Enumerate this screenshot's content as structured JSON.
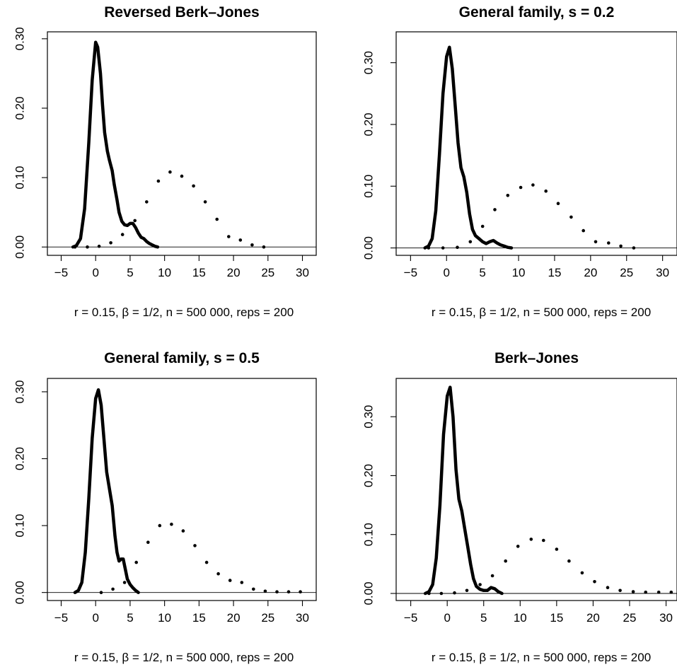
{
  "chart_data": [
    {
      "type": "line",
      "title": "Reversed Berk–Jones",
      "xlabel": "r = 0.15, β = 1/2, n = 500 000, reps = 200",
      "ylabel": "",
      "xlim": [
        -7,
        32
      ],
      "ylim": [
        -0.012,
        0.31
      ],
      "xticks": [
        -5,
        0,
        5,
        10,
        15,
        20,
        25,
        30
      ],
      "xtick_labels": [
        "−5",
        "0",
        "5",
        "10",
        "15",
        "20",
        "25",
        "30"
      ],
      "yticks": [
        0,
        0.1,
        0.2,
        0.3
      ],
      "ytick_labels": [
        "0.00",
        "0.10",
        "0.20",
        "0.30"
      ],
      "series": [
        {
          "style": "solid",
          "x": [
            -3.3,
            -2.8,
            -2.2,
            -1.6,
            -1.0,
            -0.5,
            0.0,
            0.3,
            0.7,
            1.0,
            1.3,
            1.7,
            2.0,
            2.4,
            2.7,
            3.1,
            3.4,
            3.8,
            4.2,
            4.6,
            5.0,
            5.4,
            5.8,
            6.2,
            6.6,
            7.0,
            7.4,
            7.8,
            8.2,
            8.6,
            9.0
          ],
          "y": [
            0.0,
            0.002,
            0.012,
            0.055,
            0.15,
            0.24,
            0.295,
            0.288,
            0.25,
            0.205,
            0.165,
            0.138,
            0.125,
            0.11,
            0.09,
            0.068,
            0.05,
            0.037,
            0.032,
            0.031,
            0.034,
            0.034,
            0.028,
            0.02,
            0.014,
            0.012,
            0.008,
            0.005,
            0.003,
            0.001,
            0.0
          ]
        },
        {
          "style": "dotted",
          "x": [
            -3,
            -1.2,
            0.5,
            2.2,
            3.9,
            5.7,
            7.4,
            9.1,
            10.8,
            12.5,
            14.2,
            15.9,
            17.6,
            19.3,
            21,
            22.7,
            24.4
          ],
          "y": [
            0.0,
            0.0,
            0.001,
            0.006,
            0.018,
            0.038,
            0.065,
            0.095,
            0.108,
            0.102,
            0.088,
            0.065,
            0.04,
            0.015,
            0.01,
            0.003,
            0.0
          ]
        }
      ]
    },
    {
      "type": "line",
      "title": "General family, s = 0.2",
      "xlabel": "r = 0.15, β = 1/2, n = 500 000, reps = 200",
      "ylabel": "",
      "xlim": [
        -7,
        32
      ],
      "ylim": [
        -0.012,
        0.35
      ],
      "xticks": [
        -5,
        0,
        5,
        10,
        15,
        20,
        25,
        30
      ],
      "xtick_labels": [
        "−5",
        "0",
        "5",
        "10",
        "15",
        "20",
        "25",
        "30"
      ],
      "yticks": [
        0,
        0.1,
        0.2,
        0.3
      ],
      "ytick_labels": [
        "0.00",
        "0.10",
        "0.20",
        "0.30"
      ],
      "series": [
        {
          "style": "solid",
          "x": [
            -3.0,
            -2.5,
            -2.0,
            -1.5,
            -1.0,
            -0.5,
            0.0,
            0.4,
            0.8,
            1.2,
            1.6,
            2.0,
            2.4,
            2.8,
            3.2,
            3.6,
            4.0,
            4.5,
            5.0,
            5.5,
            6.0,
            6.5,
            7.0,
            7.5,
            8.0,
            8.5,
            9.0
          ],
          "y": [
            0.0,
            0.003,
            0.015,
            0.06,
            0.15,
            0.25,
            0.31,
            0.325,
            0.29,
            0.23,
            0.17,
            0.13,
            0.115,
            0.09,
            0.055,
            0.03,
            0.02,
            0.015,
            0.01,
            0.007,
            0.01,
            0.012,
            0.008,
            0.005,
            0.003,
            0.001,
            0.0
          ]
        },
        {
          "style": "dotted",
          "x": [
            -2.5,
            -0.5,
            1.5,
            3.3,
            5.0,
            6.7,
            8.5,
            10.3,
            12.0,
            13.8,
            15.5,
            17.3,
            19.0,
            20.7,
            22.5,
            24.2,
            26.0
          ],
          "y": [
            0.0,
            0.0,
            0.001,
            0.01,
            0.035,
            0.062,
            0.085,
            0.098,
            0.102,
            0.092,
            0.072,
            0.05,
            0.028,
            0.01,
            0.008,
            0.003,
            0.0
          ]
        }
      ]
    },
    {
      "type": "line",
      "title": "General family, s = 0.5",
      "xlabel": "r = 0.15, β = 1/2, n = 500 000, reps = 200",
      "ylabel": "",
      "xlim": [
        -7,
        32
      ],
      "ylim": [
        -0.012,
        0.32
      ],
      "xticks": [
        -5,
        0,
        5,
        10,
        15,
        20,
        25,
        30
      ],
      "xtick_labels": [
        "−5",
        "0",
        "5",
        "10",
        "15",
        "20",
        "25",
        "30"
      ],
      "yticks": [
        0,
        0.1,
        0.2,
        0.3
      ],
      "ytick_labels": [
        "0.00",
        "0.10",
        "0.20",
        "0.30"
      ],
      "series": [
        {
          "style": "solid",
          "x": [
            -3.0,
            -2.5,
            -2.0,
            -1.5,
            -1.0,
            -0.5,
            0.0,
            0.4,
            0.8,
            1.2,
            1.6,
            2.0,
            2.4,
            2.8,
            3.1,
            3.4,
            3.7,
            4.0,
            4.3,
            4.6,
            5.0,
            5.4,
            5.8,
            6.2
          ],
          "y": [
            0.0,
            0.003,
            0.015,
            0.06,
            0.14,
            0.23,
            0.29,
            0.303,
            0.28,
            0.23,
            0.18,
            0.155,
            0.13,
            0.085,
            0.06,
            0.047,
            0.05,
            0.05,
            0.035,
            0.02,
            0.012,
            0.007,
            0.003,
            0.0
          ]
        },
        {
          "style": "dotted",
          "x": [
            0.8,
            2.5,
            4.2,
            5.9,
            7.6,
            9.3,
            11.0,
            12.7,
            14.4,
            16.1,
            17.8,
            19.5,
            21.2,
            22.9,
            24.6,
            26.3,
            28.0,
            29.7
          ],
          "y": [
            0.0,
            0.005,
            0.015,
            0.045,
            0.075,
            0.1,
            0.102,
            0.092,
            0.07,
            0.045,
            0.028,
            0.018,
            0.015,
            0.005,
            0.002,
            0.001,
            0.001,
            0.001
          ]
        }
      ]
    },
    {
      "type": "line",
      "title": "Berk–Jones",
      "xlabel": "r = 0.15, β = 1/2, n = 500 000, reps = 200",
      "ylabel": "",
      "xlim": [
        -7,
        31.5
      ],
      "ylim": [
        -0.012,
        0.365
      ],
      "xticks": [
        -5,
        0,
        5,
        10,
        15,
        20,
        25,
        30
      ],
      "xtick_labels": [
        "−5",
        "0",
        "5",
        "10",
        "15",
        "20",
        "25",
        "30"
      ],
      "yticks": [
        0,
        0.1,
        0.2,
        0.3
      ],
      "ytick_labels": [
        "0.00",
        "0.10",
        "0.20",
        "0.30"
      ],
      "series": [
        {
          "style": "solid",
          "x": [
            -3.0,
            -2.5,
            -2.0,
            -1.5,
            -1.0,
            -0.5,
            0.0,
            0.4,
            0.8,
            1.2,
            1.6,
            2.0,
            2.4,
            2.8,
            3.2,
            3.6,
            4.0,
            4.5,
            5.0,
            5.5,
            6.0,
            6.5,
            7.0,
            7.5
          ],
          "y": [
            0.0,
            0.003,
            0.015,
            0.06,
            0.15,
            0.27,
            0.335,
            0.35,
            0.3,
            0.21,
            0.16,
            0.14,
            0.11,
            0.08,
            0.05,
            0.025,
            0.012,
            0.007,
            0.005,
            0.005,
            0.01,
            0.008,
            0.003,
            0.0
          ]
        },
        {
          "style": "dotted",
          "x": [
            -2.5,
            -0.8,
            1.0,
            2.7,
            4.5,
            6.2,
            8.0,
            9.7,
            11.5,
            13.2,
            15.0,
            16.7,
            18.5,
            20.2,
            22.0,
            23.7,
            25.5,
            27.2,
            29.0,
            30.7
          ],
          "y": [
            0.0,
            0.0,
            0.001,
            0.005,
            0.015,
            0.03,
            0.055,
            0.08,
            0.092,
            0.09,
            0.075,
            0.055,
            0.035,
            0.02,
            0.01,
            0.005,
            0.003,
            0.002,
            0.002,
            0.002
          ]
        }
      ]
    }
  ]
}
